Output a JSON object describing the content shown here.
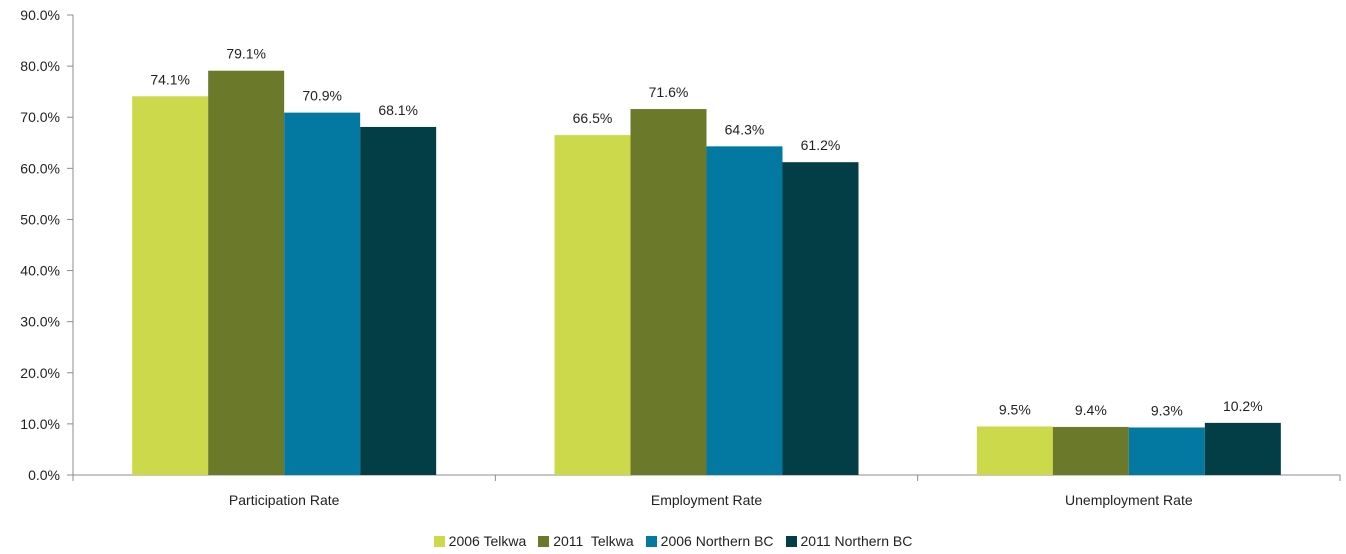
{
  "chart_data": {
    "type": "bar",
    "categories": [
      "Participation Rate",
      "Employment Rate",
      "Unemployment Rate"
    ],
    "series": [
      {
        "name": "2006 Telkwa",
        "values": [
          74.1,
          66.5,
          9.5
        ],
        "labels": [
          "74.1%",
          "66.5%",
          "9.5%"
        ],
        "color": "#ccd94a"
      },
      {
        "name": "2011  Telkwa",
        "values": [
          79.1,
          71.6,
          9.4
        ],
        "labels": [
          "79.1%",
          "71.6%",
          "9.4%"
        ],
        "color": "#6b7a2a"
      },
      {
        "name": "2006 Northern BC",
        "values": [
          70.9,
          64.3,
          9.3
        ],
        "labels": [
          "70.9%",
          "64.3%",
          "9.3%"
        ],
        "color": "#0379a1"
      },
      {
        "name": "2011 Northern BC",
        "values": [
          68.1,
          61.2,
          10.2
        ],
        "labels": [
          "68.1%",
          "61.2%",
          "10.2%"
        ],
        "color": "#033e47"
      }
    ],
    "yticks": [
      "0.0%",
      "10.0%",
      "20.0%",
      "30.0%",
      "40.0%",
      "50.0%",
      "60.0%",
      "70.0%",
      "80.0%",
      "90.0%"
    ],
    "ylim": [
      0,
      90
    ],
    "grid": false,
    "legend_position": "bottom"
  }
}
